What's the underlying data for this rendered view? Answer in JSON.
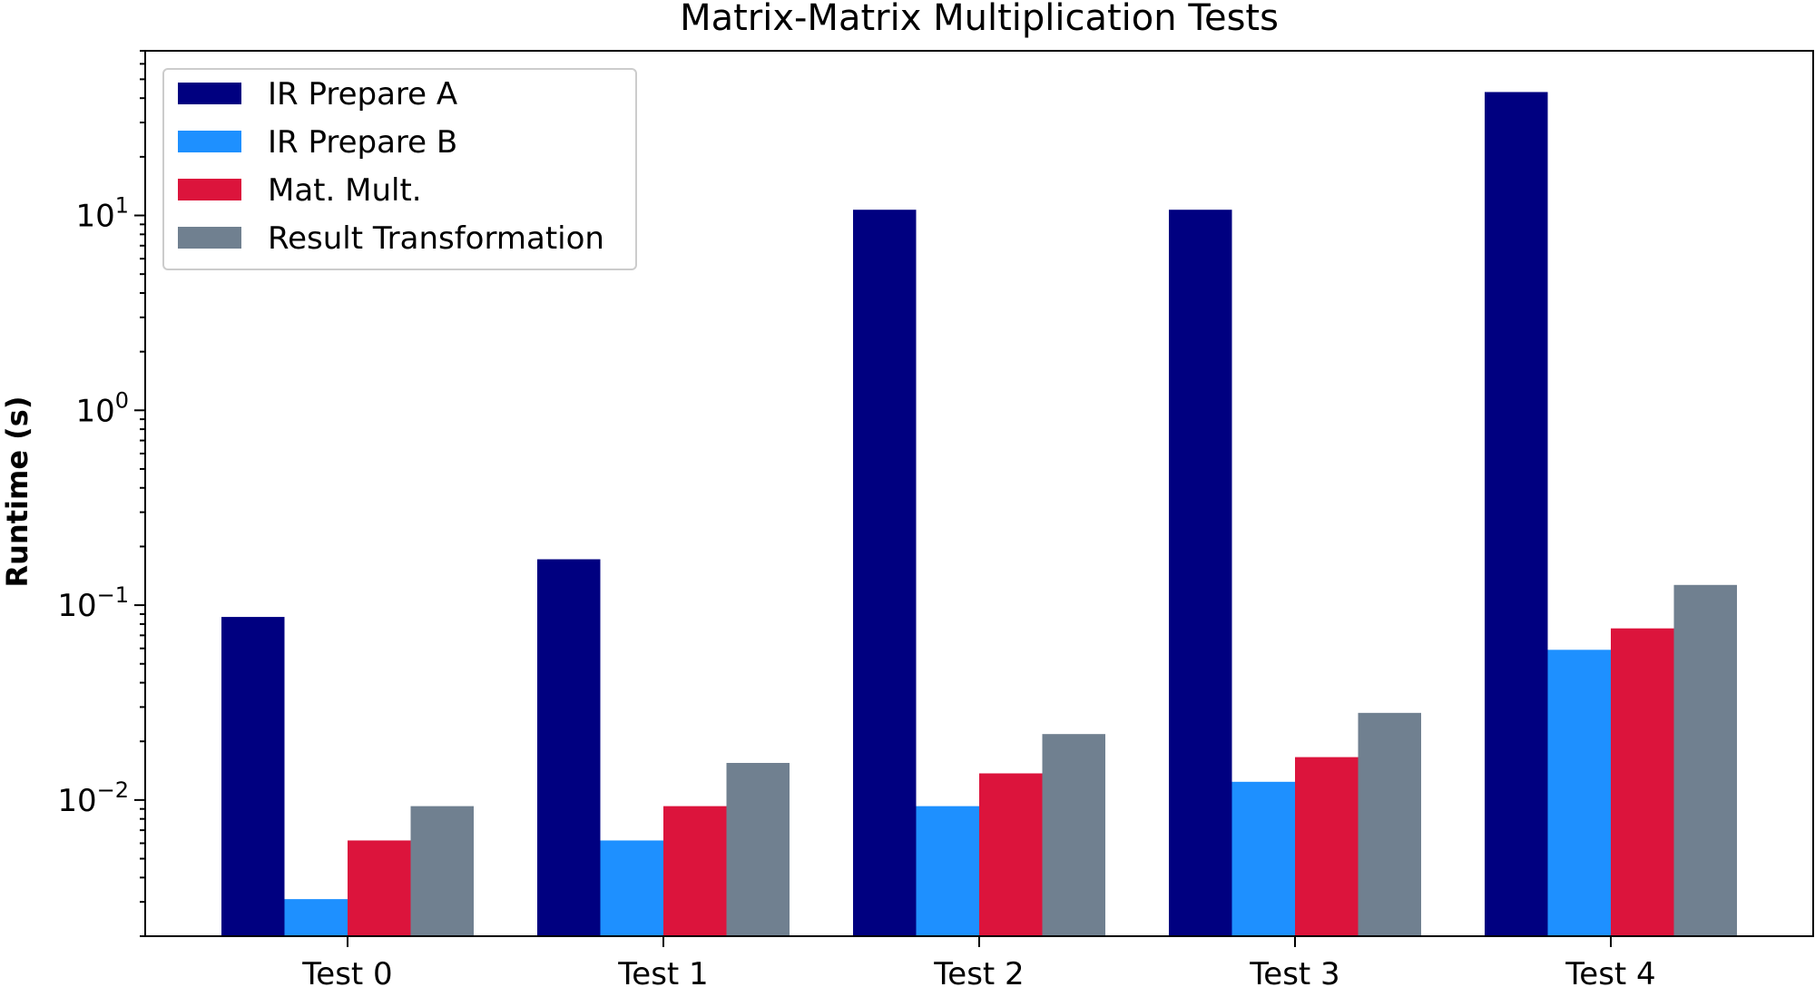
{
  "chart_data": {
    "type": "bar",
    "title": "Matrix-Matrix Multiplication Tests",
    "xlabel": "",
    "ylabel": "Runtime (s)",
    "yscale": "log",
    "ylim": [
      0.002,
      70
    ],
    "yticks": [
      {
        "value": 10,
        "base": "10",
        "exp": "1"
      },
      {
        "value": 1,
        "base": "10",
        "exp": "0"
      },
      {
        "value": 0.1,
        "base": "10",
        "exp": "−1"
      },
      {
        "value": 0.01,
        "base": "10",
        "exp": "−2"
      }
    ],
    "categories": [
      "Test 0",
      "Test 1",
      "Test 2",
      "Test 3",
      "Test 4"
    ],
    "series": [
      {
        "name": "IR Prepare A",
        "color": "#000080",
        "values": [
          0.087,
          0.172,
          10.7,
          10.7,
          43.0
        ]
      },
      {
        "name": "IR Prepare B",
        "color": "#1e90ff",
        "values": [
          0.0031,
          0.0062,
          0.0093,
          0.0124,
          0.059
        ]
      },
      {
        "name": "Mat. Mult.",
        "color": "#dc143c",
        "values": [
          0.0062,
          0.0093,
          0.0137,
          0.0166,
          0.076
        ]
      },
      {
        "name": "Result Transformation",
        "color": "#708090",
        "values": [
          0.0093,
          0.0155,
          0.0218,
          0.028,
          0.127
        ]
      }
    ],
    "legend_position": "top-left",
    "grid": false
  }
}
